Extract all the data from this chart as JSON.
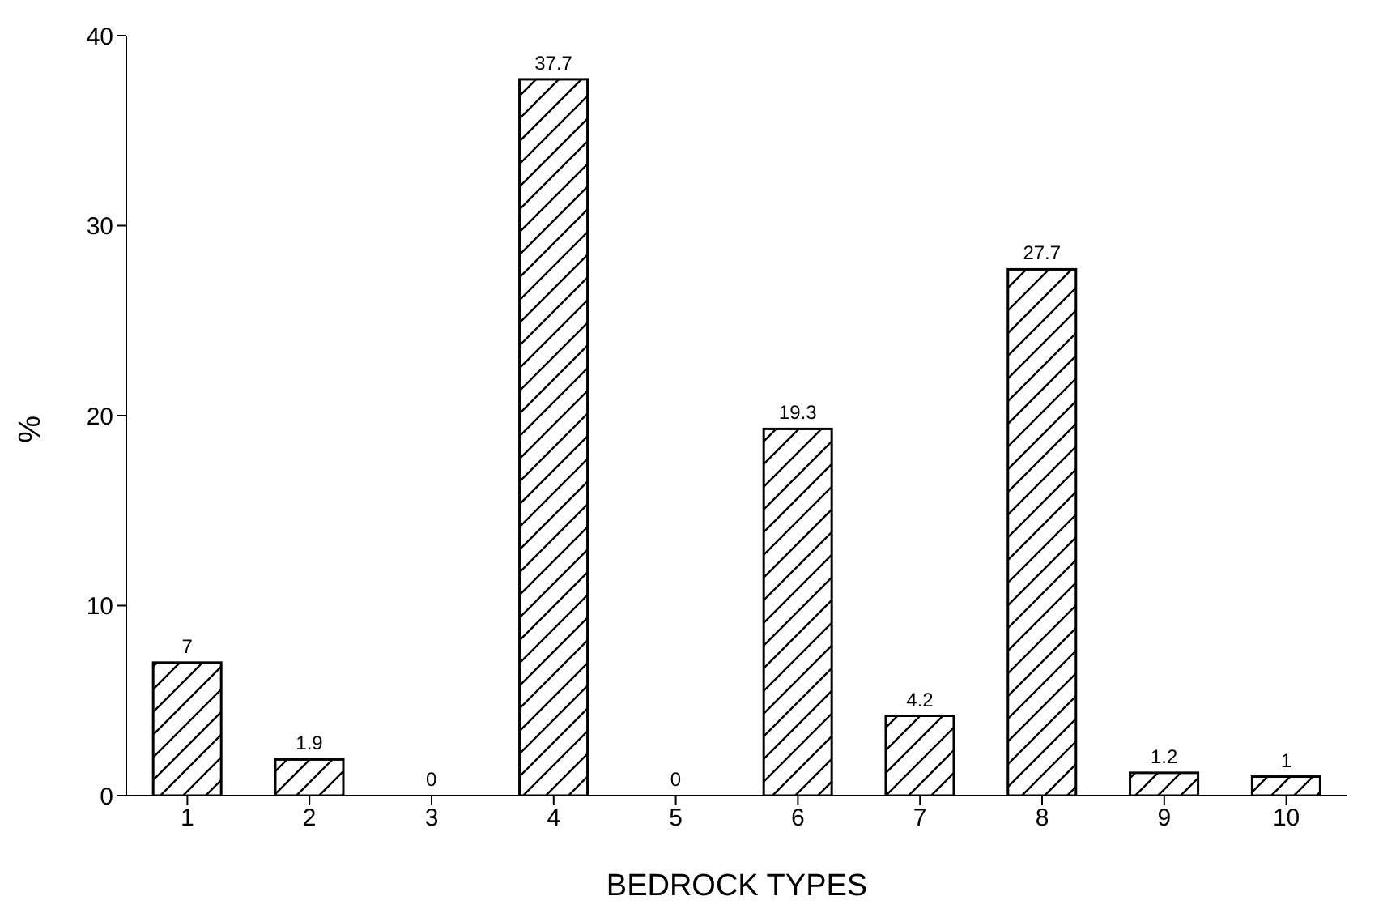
{
  "chart_data": {
    "type": "bar",
    "xlabel": "BEDROCK TYPES",
    "ylabel": "%",
    "categories": [
      "1",
      "2",
      "3",
      "4",
      "5",
      "6",
      "7",
      "8",
      "9",
      "10"
    ],
    "values": [
      7,
      1.9,
      0,
      37.7,
      0,
      19.3,
      4.2,
      27.7,
      1.2,
      1
    ],
    "color": "#000000",
    "ylim": [
      0,
      40
    ],
    "yticks": [
      0,
      10,
      20,
      30,
      40
    ],
    "grid": false,
    "data_labels": true
  }
}
